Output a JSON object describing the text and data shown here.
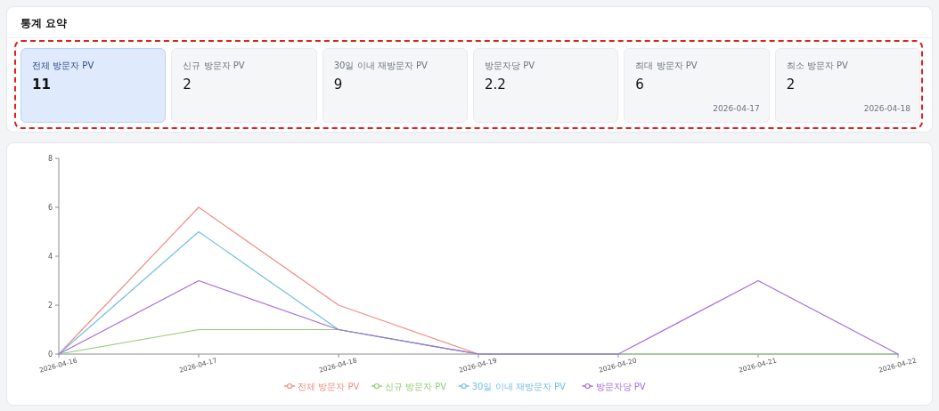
{
  "chart_data": [
    {
      "type": "other",
      "title": "통계 요약",
      "categories": [
        "전체 방문자 PV",
        "신규 방문자 PV",
        "30일 이내 재방문자 PV",
        "방문자당 PV",
        "최대 방문자 PV",
        "최소 방문자 PV"
      ],
      "values": [
        11,
        2,
        9,
        2.2,
        6,
        2
      ],
      "data_labels": true,
      "annotations": [
        "2026-04-17",
        "2026-04-18"
      ]
    },
    {
      "type": "line",
      "categories": [
        "2026-04-16",
        "2026-04-17",
        "2026-04-18",
        "2026-04-19",
        "2026-04-20",
        "2026-04-21",
        "2026-04-22"
      ],
      "ylim": [
        0,
        8
      ],
      "yticks": [
        0,
        2,
        4,
        6,
        8
      ],
      "legend": "bottom",
      "series": [
        {
          "name": "전체 방문자 PV",
          "color": "#f28b82",
          "values": [
            0,
            6,
            2,
            0,
            0,
            null,
            null
          ]
        },
        {
          "name": "신규 방문자 PV",
          "color": "#91cc75",
          "values": [
            0,
            1,
            1,
            0,
            0,
            0,
            0
          ]
        },
        {
          "name": "30일 이내 재방문자 PV",
          "color": "#73c0de",
          "values": [
            0,
            5,
            1,
            0,
            0,
            null,
            null
          ]
        },
        {
          "name": "방문자당 PV",
          "color": "#a66bdb",
          "values": [
            0,
            3,
            1,
            0,
            0,
            3,
            0
          ]
        }
      ]
    }
  ]
}
